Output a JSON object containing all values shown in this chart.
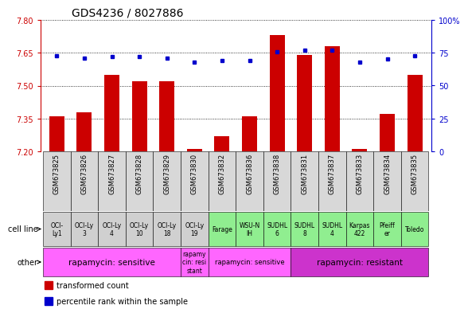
{
  "title": "GDS4236 / 8027886",
  "samples": [
    "GSM673825",
    "GSM673826",
    "GSM673827",
    "GSM673828",
    "GSM673829",
    "GSM673830",
    "GSM673832",
    "GSM673836",
    "GSM673838",
    "GSM673831",
    "GSM673837",
    "GSM673833",
    "GSM673834",
    "GSM673835"
  ],
  "transformed_count": [
    7.36,
    7.38,
    7.55,
    7.52,
    7.52,
    7.21,
    7.27,
    7.36,
    7.73,
    7.64,
    7.68,
    7.21,
    7.37,
    7.55
  ],
  "percentile_rank": [
    73,
    71,
    72,
    72,
    71,
    68,
    69,
    69,
    76,
    77,
    77,
    68,
    70,
    73
  ],
  "cell_line": [
    "OCI-\nLy1",
    "OCI-Ly\n3",
    "OCI-Ly\n4",
    "OCI-Ly\n10",
    "OCI-Ly\n18",
    "OCI-Ly\n19",
    "Farage",
    "WSU-N\nIH",
    "SUDHL\n6",
    "SUDHL\n8",
    "SUDHL\n4",
    "Karpas\n422",
    "Pfeiff\ner",
    "Toledo"
  ],
  "cell_line_colors": [
    "#d0d0d0",
    "#d0d0d0",
    "#d0d0d0",
    "#d0d0d0",
    "#d0d0d0",
    "#d0d0d0",
    "#90ee90",
    "#90ee90",
    "#90ee90",
    "#90ee90",
    "#90ee90",
    "#90ee90",
    "#90ee90",
    "#90ee90"
  ],
  "groups": [
    {
      "text": "rapamycin: sensitive",
      "start": 0,
      "end": 4,
      "color": "#ff66ff",
      "fontsize": 7.5
    },
    {
      "text": "rapamy\ncin: resi\nstant",
      "start": 5,
      "end": 5,
      "color": "#ff66ff",
      "fontsize": 5.5
    },
    {
      "text": "rapamycin: sensitive",
      "start": 6,
      "end": 8,
      "color": "#ff66ff",
      "fontsize": 6
    },
    {
      "text": "rapamycin: resistant",
      "start": 9,
      "end": 13,
      "color": "#cc33cc",
      "fontsize": 7.5
    }
  ],
  "ylim": [
    7.2,
    7.8
  ],
  "y2lim": [
    0,
    100
  ],
  "yticks": [
    7.2,
    7.35,
    7.5,
    7.65,
    7.8
  ],
  "y2ticks": [
    0,
    25,
    50,
    75,
    100
  ],
  "bar_color": "#cc0000",
  "dot_color": "#0000cc",
  "ylabel_color": "#cc0000",
  "y2label_color": "#0000cc",
  "title_fontsize": 10,
  "tick_fontsize": 7,
  "sample_fontsize": 6,
  "cell_fontsize": 5.5,
  "label_fontsize": 7
}
